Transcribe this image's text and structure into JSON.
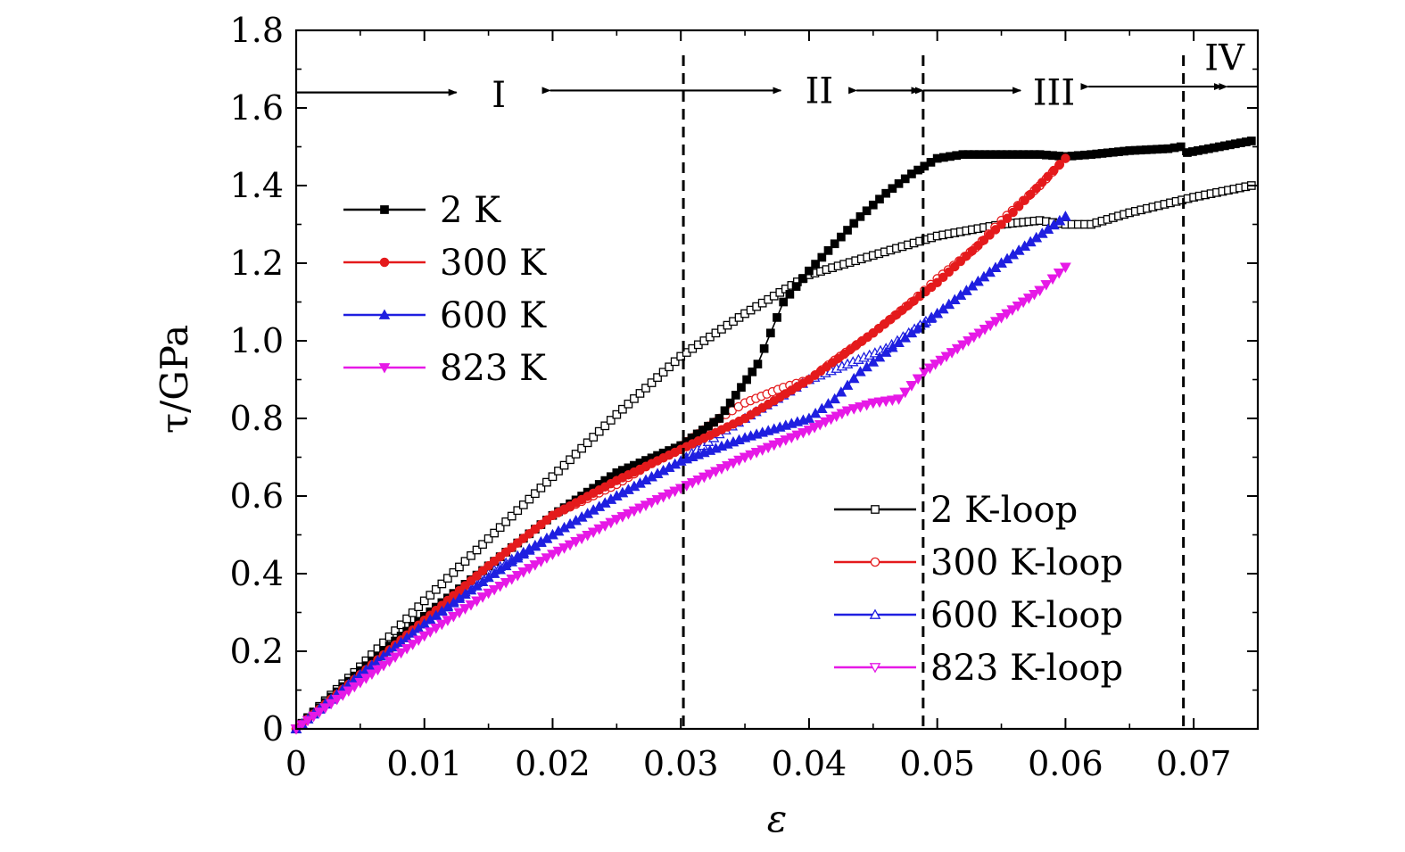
{
  "chart_data": {
    "type": "line",
    "xlabel": "ε",
    "ylabel": "τ/GPa",
    "xlim": [
      0,
      0.075
    ],
    "ylim": [
      0,
      1.8
    ],
    "xticks": [
      "0",
      "0.01",
      "0.02",
      "0.03",
      "0.04",
      "0.05",
      "0.06",
      "0.07"
    ],
    "xtick_values": [
      0,
      0.01,
      0.02,
      0.03,
      0.04,
      0.05,
      0.06,
      0.07
    ],
    "yticks": [
      "0",
      "0.2",
      "0.4",
      "0.6",
      "0.8",
      "1.0",
      "1.2",
      "1.4",
      "1.6",
      "1.8"
    ],
    "ytick_values": [
      0,
      0.2,
      0.4,
      0.6,
      0.8,
      1.0,
      1.2,
      1.4,
      1.6,
      1.8
    ],
    "grid": false,
    "boundaries": [
      0.0302,
      0.0489,
      0.0692
    ],
    "regions": [
      {
        "label": "I",
        "x": 0.0158,
        "y": 1.635
      },
      {
        "label": "II",
        "x": 0.0408,
        "y": 1.645
      },
      {
        "label": "III",
        "x": 0.0591,
        "y": 1.64
      },
      {
        "label": "IV",
        "x": 0.0724,
        "y": 1.73
      }
    ],
    "arrows": [
      {
        "from": [
          0,
          1.64
        ],
        "to": [
          0.0125,
          1.64
        ]
      },
      {
        "from": [
          0.0198,
          1.645
        ],
        "to": [
          0.0378,
          1.645
        ]
      },
      {
        "from": [
          0.0437,
          1.645
        ],
        "to": [
          0.0486,
          1.645
        ]
      },
      {
        "from": [
          0.0489,
          1.645
        ],
        "to": [
          0.0565,
          1.645
        ]
      },
      {
        "from": [
          0.0618,
          1.655
        ],
        "to": [
          0.0722,
          1.655
        ]
      },
      {
        "from": [
          0.0726,
          1.655
        ],
        "to": [
          0.075,
          1.655
        ]
      }
    ],
    "legend_top_left": [
      "2 K",
      "300 K",
      "600 K",
      "823 K"
    ],
    "legend_bottom_right": [
      "2 K-loop",
      "300 K-loop",
      "600 K-loop",
      "823 K-loop"
    ],
    "series": [
      {
        "name": "2 K",
        "color": "#000000",
        "marker": "square-filled",
        "x": [
          0,
          0.005,
          0.01,
          0.015,
          0.02,
          0.025,
          0.03,
          0.033,
          0.036,
          0.038,
          0.04,
          0.042,
          0.044,
          0.046,
          0.048,
          0.049,
          0.05,
          0.052,
          0.055,
          0.058,
          0.06,
          0.062,
          0.065,
          0.068,
          0.069,
          0.0695,
          0.072,
          0.0745
        ],
        "y": [
          0,
          0.15,
          0.29,
          0.42,
          0.55,
          0.66,
          0.73,
          0.8,
          0.94,
          1.1,
          1.18,
          1.25,
          1.32,
          1.38,
          1.43,
          1.45,
          1.47,
          1.48,
          1.48,
          1.48,
          1.475,
          1.48,
          1.49,
          1.495,
          1.5,
          1.485,
          1.5,
          1.515
        ]
      },
      {
        "name": "300 K",
        "color": "#e41a1c",
        "marker": "circle-filled",
        "x": [
          0,
          0.005,
          0.01,
          0.015,
          0.02,
          0.025,
          0.03,
          0.035,
          0.04,
          0.045,
          0.05,
          0.055,
          0.06
        ],
        "y": [
          0,
          0.14,
          0.28,
          0.42,
          0.55,
          0.64,
          0.72,
          0.8,
          0.9,
          1.02,
          1.15,
          1.3,
          1.47
        ]
      },
      {
        "name": "600 K",
        "color": "#1f1fe0",
        "marker": "triangle-up-filled",
        "x": [
          0,
          0.005,
          0.01,
          0.015,
          0.02,
          0.025,
          0.03,
          0.035,
          0.04,
          0.042,
          0.044,
          0.046,
          0.048,
          0.05,
          0.055,
          0.06
        ],
        "y": [
          0,
          0.14,
          0.27,
          0.39,
          0.5,
          0.6,
          0.69,
          0.75,
          0.8,
          0.85,
          0.92,
          0.97,
          1.02,
          1.07,
          1.2,
          1.32
        ]
      },
      {
        "name": "823 K",
        "color": "#e619e6",
        "marker": "triangle-down-filled",
        "x": [
          0,
          0.005,
          0.01,
          0.015,
          0.02,
          0.025,
          0.03,
          0.035,
          0.04,
          0.043,
          0.045,
          0.047,
          0.049,
          0.052,
          0.055,
          0.058,
          0.06
        ],
        "y": [
          0,
          0.12,
          0.24,
          0.35,
          0.45,
          0.54,
          0.62,
          0.7,
          0.77,
          0.82,
          0.84,
          0.85,
          0.92,
          0.99,
          1.06,
          1.13,
          1.19
        ]
      },
      {
        "name": "2 K-loop",
        "color": "#000000",
        "marker": "square-open",
        "x": [
          0,
          0.005,
          0.01,
          0.015,
          0.02,
          0.025,
          0.03,
          0.035,
          0.04,
          0.045,
          0.05,
          0.055,
          0.058,
          0.06,
          0.062,
          0.065,
          0.07,
          0.0745
        ],
        "y": [
          0,
          0.16,
          0.33,
          0.49,
          0.65,
          0.81,
          0.96,
          1.07,
          1.17,
          1.22,
          1.27,
          1.3,
          1.31,
          1.3,
          1.3,
          1.33,
          1.37,
          1.4
        ]
      },
      {
        "name": "300 K-loop",
        "color": "#e41a1c",
        "marker": "circle-open",
        "x": [
          0,
          0.005,
          0.01,
          0.015,
          0.02,
          0.025,
          0.03,
          0.033,
          0.035,
          0.038,
          0.04,
          0.042,
          0.045,
          0.048,
          0.05,
          0.053,
          0.055,
          0.058,
          0.06
        ],
        "y": [
          0,
          0.14,
          0.28,
          0.42,
          0.55,
          0.63,
          0.73,
          0.8,
          0.84,
          0.88,
          0.9,
          0.95,
          1.02,
          1.1,
          1.16,
          1.24,
          1.31,
          1.4,
          1.47
        ]
      },
      {
        "name": "600 K-loop",
        "color": "#1f1fe0",
        "marker": "triangle-up-open",
        "x": [
          0,
          0.005,
          0.01,
          0.015,
          0.02,
          0.025,
          0.03,
          0.033,
          0.035,
          0.038,
          0.04,
          0.043,
          0.046,
          0.05,
          0.055,
          0.06
        ],
        "y": [
          0,
          0.14,
          0.27,
          0.4,
          0.5,
          0.6,
          0.69,
          0.76,
          0.8,
          0.86,
          0.9,
          0.94,
          0.98,
          1.07,
          1.2,
          1.32
        ]
      },
      {
        "name": "823 K-loop",
        "color": "#e619e6",
        "marker": "triangle-down-open",
        "x": [
          0,
          0.005,
          0.01,
          0.015,
          0.02,
          0.025,
          0.03,
          0.035,
          0.04,
          0.043,
          0.045,
          0.047,
          0.049,
          0.052,
          0.055,
          0.058,
          0.06
        ],
        "y": [
          0,
          0.12,
          0.24,
          0.35,
          0.45,
          0.54,
          0.62,
          0.7,
          0.77,
          0.82,
          0.84,
          0.85,
          0.92,
          0.99,
          1.06,
          1.13,
          1.19
        ]
      }
    ]
  }
}
